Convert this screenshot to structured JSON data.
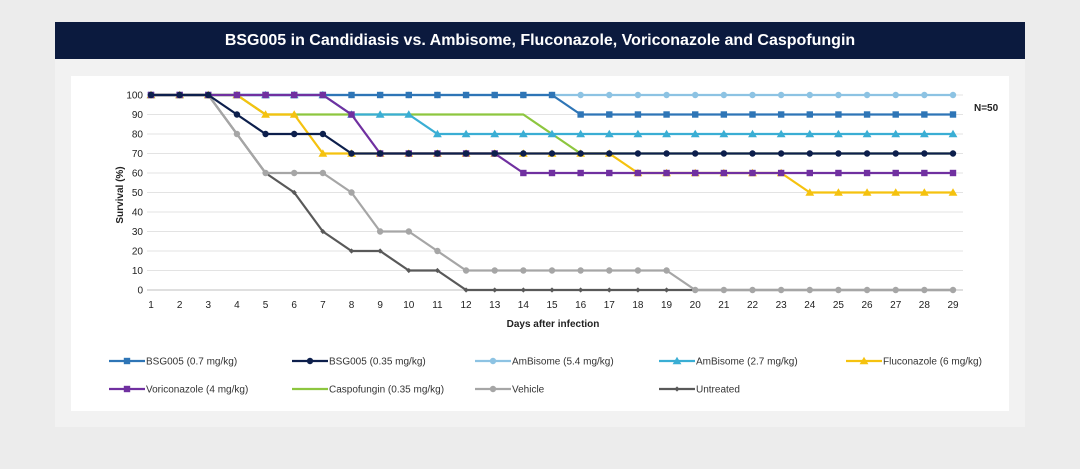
{
  "title": "BSG005 in Candidiasis vs. Ambisome, Fluconazole, Voriconazole and Caspofungin",
  "note": "N=50",
  "chart_data": {
    "type": "line",
    "title": "BSG005 in Candidiasis vs. Ambisome, Fluconazole, Voriconazole and Caspofungin",
    "xlabel": "Days after infection",
    "ylabel": "Survival (%)",
    "xlim": [
      1,
      29
    ],
    "ylim": [
      0,
      100
    ],
    "x": [
      1,
      2,
      3,
      4,
      5,
      6,
      7,
      8,
      9,
      10,
      11,
      12,
      13,
      14,
      15,
      16,
      17,
      18,
      19,
      20,
      21,
      22,
      23,
      24,
      25,
      26,
      27,
      28,
      29
    ],
    "yticks": [
      0,
      10,
      20,
      30,
      40,
      50,
      60,
      70,
      80,
      90,
      100
    ],
    "grid": "horizontal",
    "legend_position": "bottom",
    "series": [
      {
        "name": "BSG005 (0.7 mg/kg)",
        "color": "#2e75b6",
        "marker": "square",
        "values": [
          100,
          100,
          100,
          100,
          100,
          100,
          100,
          100,
          100,
          100,
          100,
          100,
          100,
          100,
          100,
          90,
          90,
          90,
          90,
          90,
          90,
          90,
          90,
          90,
          90,
          90,
          90,
          90,
          90
        ]
      },
      {
        "name": "BSG005 (0.35 mg/kg)",
        "color": "#0d1f4c",
        "marker": "circle",
        "values": [
          100,
          100,
          100,
          90,
          80,
          80,
          80,
          70,
          70,
          70,
          70,
          70,
          70,
          70,
          70,
          70,
          70,
          70,
          70,
          70,
          70,
          70,
          70,
          70,
          70,
          70,
          70,
          70,
          70
        ]
      },
      {
        "name": "AmBisome (5.4 mg/kg)",
        "color": "#8dc3e3",
        "marker": "circle",
        "values": [
          100,
          100,
          100,
          100,
          100,
          100,
          100,
          100,
          100,
          100,
          100,
          100,
          100,
          100,
          100,
          100,
          100,
          100,
          100,
          100,
          100,
          100,
          100,
          100,
          100,
          100,
          100,
          100,
          100
        ]
      },
      {
        "name": "AmBisome (2.7 mg/kg)",
        "color": "#3aaed4",
        "marker": "triangle",
        "values": [
          100,
          100,
          100,
          100,
          100,
          100,
          100,
          90,
          90,
          90,
          80,
          80,
          80,
          80,
          80,
          80,
          80,
          80,
          80,
          80,
          80,
          80,
          80,
          80,
          80,
          80,
          80,
          80,
          80
        ]
      },
      {
        "name": "Fluconazole (6 mg/kg)",
        "color": "#f5c20f",
        "marker": "triangle",
        "values": [
          100,
          100,
          100,
          100,
          90,
          90,
          70,
          70,
          70,
          70,
          70,
          70,
          70,
          70,
          70,
          70,
          70,
          60,
          60,
          60,
          60,
          60,
          60,
          50,
          50,
          50,
          50,
          50,
          50
        ]
      },
      {
        "name": "Voriconazole (4 mg/kg)",
        "color": "#7030a0",
        "marker": "square",
        "values": [
          100,
          100,
          100,
          100,
          100,
          100,
          100,
          90,
          70,
          70,
          70,
          70,
          70,
          60,
          60,
          60,
          60,
          60,
          60,
          60,
          60,
          60,
          60,
          60,
          60,
          60,
          60,
          60,
          60
        ]
      },
      {
        "name": "Caspofungin (0.35 mg/kg)",
        "color": "#8dc63f",
        "marker": "none",
        "values": [
          100,
          100,
          100,
          100,
          90,
          90,
          90,
          90,
          90,
          90,
          90,
          90,
          90,
          90,
          80,
          70,
          70,
          70,
          70,
          70,
          70,
          70,
          70,
          70,
          70,
          70,
          70,
          70,
          70
        ]
      },
      {
        "name": "Vehicle",
        "color": "#a6a6a6",
        "marker": "circle",
        "values": [
          100,
          100,
          100,
          80,
          60,
          60,
          60,
          50,
          30,
          30,
          20,
          10,
          10,
          10,
          10,
          10,
          10,
          10,
          10,
          0,
          0,
          0,
          0,
          0,
          0,
          0,
          0,
          0,
          0
        ]
      },
      {
        "name": "Untreated",
        "color": "#595959",
        "marker": "diamond",
        "values": [
          100,
          100,
          100,
          80,
          60,
          50,
          30,
          20,
          20,
          10,
          10,
          0,
          0,
          0,
          0,
          0,
          0,
          0,
          0,
          0,
          0,
          0,
          0,
          0,
          0,
          0,
          0,
          0,
          0
        ]
      }
    ]
  }
}
